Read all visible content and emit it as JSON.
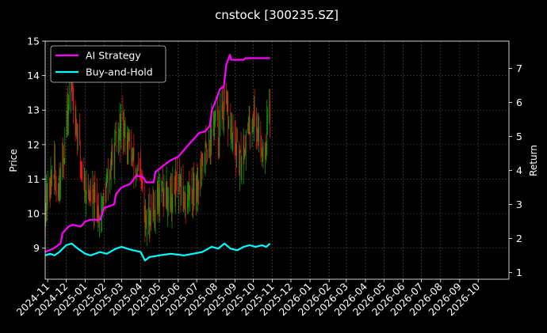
{
  "chart_data": {
    "type": "line",
    "title": "cnstock [300235.SZ]",
    "ylabel_left": "Price",
    "ylabel_right": "Return",
    "xlabel": "",
    "x_ticks": [
      "2024-11",
      "2024-12",
      "2025-01",
      "2025-02",
      "2025-03",
      "2025-04",
      "2025-05",
      "2025-06",
      "2025-07",
      "2025-08",
      "2025-09",
      "2025-10",
      "2025-11",
      "2025-12",
      "2026-01",
      "2026-02",
      "2026-03",
      "2026-04",
      "2026-05",
      "2026-06",
      "2026-07",
      "2026-08",
      "2026-09",
      "2026-10"
    ],
    "y_left_ticks": [
      9,
      10,
      11,
      12,
      13,
      14,
      15
    ],
    "y_right_ticks": [
      1,
      2,
      3,
      4,
      5,
      6,
      7
    ],
    "y_left_lim": [
      8.1,
      15.0
    ],
    "y_right_lim": [
      0.8,
      7.8
    ],
    "x_lim": [
      "2024-10-28",
      "2026-11-20"
    ],
    "grid": true,
    "legend_position": "top-left",
    "colors": {
      "up": "#00b000",
      "down": "#ff1a1a",
      "ai": "#ff00ff",
      "bh": "#00ffff",
      "background": "#000000",
      "grid": "#555555"
    },
    "legend": [
      {
        "name": "AI Strategy",
        "color": "#ff00ff"
      },
      {
        "name": "Buy-and-Hold",
        "color": "#00ffff"
      }
    ],
    "price_path": [
      [
        "2024-10-28",
        10.2
      ],
      [
        "2024-11-01",
        10.6
      ],
      [
        "2024-11-06",
        10.9
      ],
      [
        "2024-11-10",
        11.4
      ],
      [
        "2024-11-15",
        10.7
      ],
      [
        "2024-11-20",
        11.0
      ],
      [
        "2024-11-26",
        11.6
      ],
      [
        "2024-12-01",
        12.5
      ],
      [
        "2024-12-06",
        13.4
      ],
      [
        "2024-12-10",
        13.8
      ],
      [
        "2024-12-15",
        12.9
      ],
      [
        "2024-12-20",
        12.2
      ],
      [
        "2024-12-26",
        11.3
      ],
      [
        "2025-01-01",
        10.8
      ],
      [
        "2025-01-06",
        10.6
      ],
      [
        "2025-01-12",
        10.4
      ],
      [
        "2025-01-18",
        10.2
      ],
      [
        "2025-01-25",
        10.0
      ],
      [
        "2025-02-01",
        10.4
      ],
      [
        "2025-02-06",
        10.9
      ],
      [
        "2025-02-12",
        11.4
      ],
      [
        "2025-02-18",
        11.9
      ],
      [
        "2025-02-24",
        12.2
      ],
      [
        "2025-03-01",
        12.6
      ],
      [
        "2025-03-06",
        12.3
      ],
      [
        "2025-03-12",
        12.1
      ],
      [
        "2025-03-18",
        11.6
      ],
      [
        "2025-03-24",
        11.3
      ],
      [
        "2025-03-30",
        11.0
      ],
      [
        "2025-04-04",
        10.7
      ],
      [
        "2025-04-08",
        9.6
      ],
      [
        "2025-04-12",
        9.8
      ],
      [
        "2025-04-18",
        10.1
      ],
      [
        "2025-04-25",
        10.3
      ],
      [
        "2025-05-01",
        10.5
      ],
      [
        "2025-05-08",
        10.7
      ],
      [
        "2025-05-15",
        10.6
      ],
      [
        "2025-05-22",
        10.5
      ],
      [
        "2025-05-29",
        10.8
      ],
      [
        "2025-06-05",
        10.6
      ],
      [
        "2025-06-12",
        10.4
      ],
      [
        "2025-06-19",
        10.6
      ],
      [
        "2025-06-26",
        10.8
      ],
      [
        "2025-07-03",
        10.9
      ],
      [
        "2025-07-10",
        11.3
      ],
      [
        "2025-07-17",
        11.9
      ],
      [
        "2025-07-24",
        12.3
      ],
      [
        "2025-07-31",
        12.8
      ],
      [
        "2025-08-05",
        12.3
      ],
      [
        "2025-08-10",
        12.9
      ],
      [
        "2025-08-16",
        13.2
      ],
      [
        "2025-08-22",
        12.6
      ],
      [
        "2025-08-28",
        12.2
      ],
      [
        "2025-09-03",
        11.8
      ],
      [
        "2025-09-09",
        11.4
      ],
      [
        "2025-09-15",
        11.9
      ],
      [
        "2025-09-21",
        12.3
      ],
      [
        "2025-09-27",
        12.6
      ],
      [
        "2025-10-03",
        12.9
      ],
      [
        "2025-10-09",
        12.3
      ],
      [
        "2025-10-15",
        12.0
      ],
      [
        "2025-10-20",
        11.8
      ],
      [
        "2025-10-24",
        12.7
      ],
      [
        "2025-10-28",
        13.0
      ]
    ],
    "series": [
      {
        "name": "AI Strategy",
        "axis": "right",
        "color": "#ff00ff",
        "points": [
          [
            "2024-10-28",
            1.6
          ],
          [
            "2024-11-10",
            1.7
          ],
          [
            "2024-11-22",
            1.85
          ],
          [
            "2024-11-25",
            2.15
          ],
          [
            "2024-12-05",
            2.35
          ],
          [
            "2024-12-12",
            2.4
          ],
          [
            "2024-12-25",
            2.35
          ],
          [
            "2025-01-01",
            2.5
          ],
          [
            "2025-01-10",
            2.55
          ],
          [
            "2025-01-25",
            2.55
          ],
          [
            "2025-02-01",
            2.9
          ],
          [
            "2025-02-10",
            2.95
          ],
          [
            "2025-02-17",
            3.0
          ],
          [
            "2025-02-20",
            3.3
          ],
          [
            "2025-03-01",
            3.5
          ],
          [
            "2025-03-15",
            3.6
          ],
          [
            "2025-03-25",
            3.85
          ],
          [
            "2025-04-05",
            3.8
          ],
          [
            "2025-04-10",
            3.65
          ],
          [
            "2025-04-22",
            3.65
          ],
          [
            "2025-04-25",
            3.95
          ],
          [
            "2025-05-05",
            4.1
          ],
          [
            "2025-05-20",
            4.3
          ],
          [
            "2025-06-01",
            4.4
          ],
          [
            "2025-06-15",
            4.7
          ],
          [
            "2025-06-25",
            4.9
          ],
          [
            "2025-07-05",
            5.1
          ],
          [
            "2025-07-15",
            5.15
          ],
          [
            "2025-07-22",
            5.3
          ],
          [
            "2025-07-26",
            5.8
          ],
          [
            "2025-08-01",
            6.05
          ],
          [
            "2025-08-08",
            6.4
          ],
          [
            "2025-08-14",
            6.45
          ],
          [
            "2025-08-18",
            7.1
          ],
          [
            "2025-08-24",
            7.4
          ],
          [
            "2025-08-26",
            7.25
          ],
          [
            "2025-09-15",
            7.25
          ],
          [
            "2025-09-18",
            7.3
          ],
          [
            "2025-10-28",
            7.3
          ]
        ]
      },
      {
        "name": "Buy-and-Hold",
        "axis": "right",
        "color": "#00ffff",
        "points": [
          [
            "2024-10-28",
            1.5
          ],
          [
            "2024-11-05",
            1.55
          ],
          [
            "2024-11-12",
            1.5
          ],
          [
            "2024-11-20",
            1.6
          ],
          [
            "2024-12-01",
            1.8
          ],
          [
            "2024-12-10",
            1.85
          ],
          [
            "2024-12-20",
            1.7
          ],
          [
            "2025-01-01",
            1.55
          ],
          [
            "2025-01-10",
            1.5
          ],
          [
            "2025-01-25",
            1.6
          ],
          [
            "2025-02-05",
            1.55
          ],
          [
            "2025-02-20",
            1.7
          ],
          [
            "2025-03-01",
            1.75
          ],
          [
            "2025-03-10",
            1.7
          ],
          [
            "2025-03-20",
            1.65
          ],
          [
            "2025-04-01",
            1.6
          ],
          [
            "2025-04-08",
            1.35
          ],
          [
            "2025-04-15",
            1.45
          ],
          [
            "2025-05-01",
            1.5
          ],
          [
            "2025-05-20",
            1.55
          ],
          [
            "2025-06-10",
            1.5
          ],
          [
            "2025-06-25",
            1.55
          ],
          [
            "2025-07-10",
            1.6
          ],
          [
            "2025-07-25",
            1.75
          ],
          [
            "2025-08-05",
            1.7
          ],
          [
            "2025-08-15",
            1.85
          ],
          [
            "2025-08-25",
            1.7
          ],
          [
            "2025-09-05",
            1.65
          ],
          [
            "2025-09-15",
            1.75
          ],
          [
            "2025-09-25",
            1.8
          ],
          [
            "2025-10-05",
            1.75
          ],
          [
            "2025-10-15",
            1.8
          ],
          [
            "2025-10-22",
            1.75
          ],
          [
            "2025-10-28",
            1.85
          ]
        ]
      }
    ]
  }
}
